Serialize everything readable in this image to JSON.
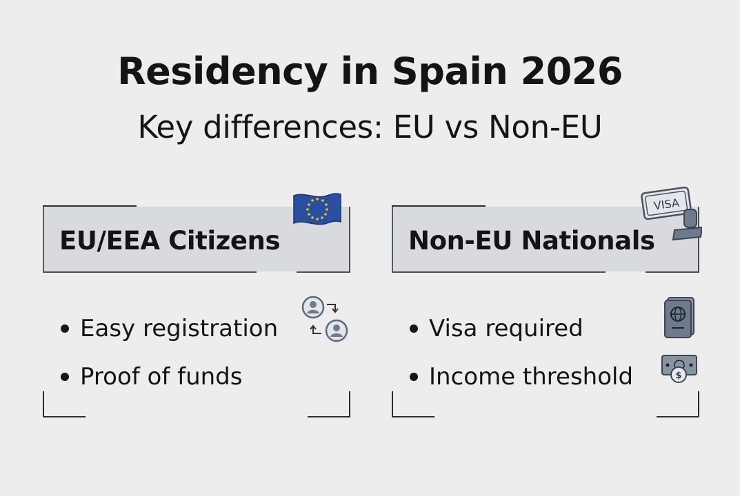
{
  "title": "Residency in Spain 2026",
  "subtitle": "Key differences: EU vs Non-EU",
  "cards": [
    {
      "heading": "EU/EEA Citizens",
      "header_icon": "eu-flag-icon",
      "bullets": [
        {
          "label": "Easy registration",
          "icon": "user-swap-icon"
        },
        {
          "label": "Proof of funds",
          "icon": ""
        }
      ]
    },
    {
      "heading": "Non-EU Nationals",
      "header_icon": "visa-stamp-icon",
      "header_icon_text": "VISA",
      "bullets": [
        {
          "label": "Visa required",
          "icon": "passport-icon"
        },
        {
          "label": "Income threshold",
          "icon": "money-icon"
        }
      ]
    }
  ],
  "colors": {
    "background": "#ededed",
    "header_fill": "#d9dadd",
    "eu_blue": "#2a4fa0",
    "eu_star": "#f0c419",
    "icon_gray": "#6f7b8c"
  }
}
